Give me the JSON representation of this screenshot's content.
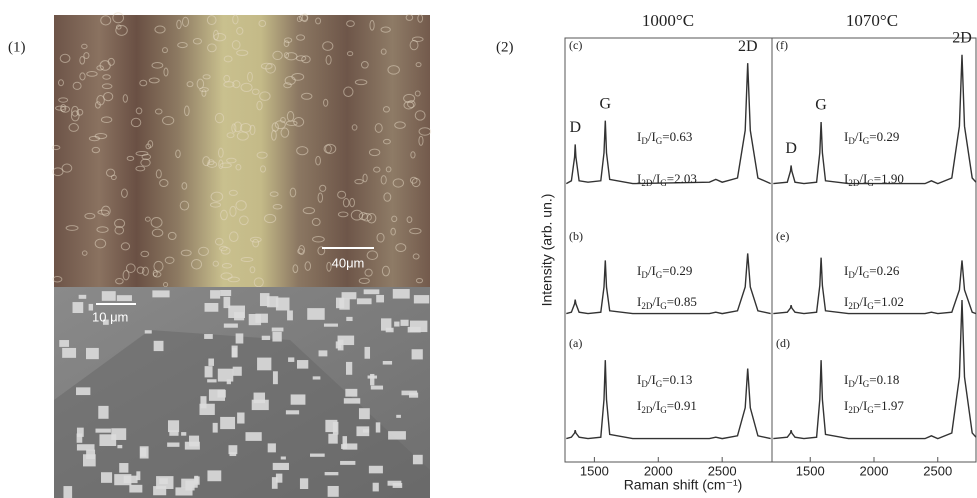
{
  "figure": {
    "panel1_label": "(1)",
    "scale_bar_top": "40μm",
    "scale_bar_bottom": "10 μm",
    "panel2_label": "(2)"
  },
  "chart_data": [
    {
      "type": "line",
      "title": "1000°C",
      "y_label": "Intensity (arb. un.)",
      "x_label": "Raman shift (cm⁻¹)",
      "xlim": [
        1270,
        2890
      ],
      "xticks": [
        1500,
        2000,
        2500
      ],
      "ylim": [
        0,
        100
      ],
      "x": [
        1280,
        1320,
        1345,
        1350,
        1355,
        1380,
        1450,
        1550,
        1575,
        1585,
        1595,
        1620,
        1800,
        2400,
        2450,
        2500,
        2620,
        2680,
        2700,
        2720,
        2780,
        2880
      ],
      "series": [
        {
          "name": "(c)",
          "color": "#333333",
          "values": [
            1,
            3,
            20,
            29,
            20,
            3,
            2,
            3,
            23,
            46,
            23,
            4,
            1,
            2,
            4,
            2,
            5,
            39,
            87,
            39,
            5,
            1
          ],
          "annotations": [
            {
              "text": "D",
              "x": 1350
            },
            {
              "text": "G",
              "x": 1585
            },
            {
              "text": "2D",
              "x": 2700
            }
          ],
          "ratios": [
            [
              "I",
              "D",
              "/I",
              "G",
              "=0.63"
            ],
            [
              "I",
              "2D",
              "/I",
              "G",
              "=2.03"
            ]
          ]
        },
        {
          "name": "(b)",
          "color": "#333333",
          "values": [
            1,
            2,
            8,
            11,
            8,
            2,
            1,
            2,
            20,
            39,
            20,
            3,
            1,
            1,
            2,
            1,
            3,
            20,
            44,
            20,
            3,
            1
          ],
          "ratios": [
            [
              "I",
              "D",
              "/I",
              "G",
              "=0.29"
            ],
            [
              "I",
              "2D",
              "/I",
              "G",
              "=0.85"
            ]
          ]
        },
        {
          "name": "(a)",
          "color": "#333333",
          "values": [
            1,
            2,
            5,
            7,
            5,
            2,
            1,
            2,
            29,
            57,
            29,
            4,
            1,
            1,
            2,
            1,
            3,
            23,
            51,
            23,
            3,
            1
          ],
          "ratios": [
            [
              "I",
              "D",
              "/I",
              "G",
              "=0.13"
            ],
            [
              "I",
              "2D",
              "/I",
              "G",
              "=0.91"
            ]
          ]
        }
      ]
    },
    {
      "type": "line",
      "title": "1070°C",
      "xlim": [
        1200,
        2800
      ],
      "xticks": [
        1500,
        2000,
        2500
      ],
      "ylim": [
        0,
        100
      ],
      "x": [
        1210,
        1320,
        1345,
        1350,
        1355,
        1380,
        1450,
        1550,
        1575,
        1585,
        1595,
        1620,
        1800,
        2400,
        2450,
        2500,
        2610,
        2670,
        2690,
        2710,
        2770,
        2800
      ],
      "series": [
        {
          "name": "(f)",
          "color": "#333333",
          "values": [
            1,
            2,
            10,
            14,
            10,
            2,
            1,
            2,
            23,
            45,
            23,
            3,
            1,
            1,
            3,
            1,
            5,
            42,
            93,
            42,
            5,
            2
          ],
          "annotations": [
            {
              "text": "D",
              "x": 1350
            },
            {
              "text": "G",
              "x": 1585
            },
            {
              "text": "2D",
              "x": 2690
            }
          ],
          "ratios": [
            [
              "I",
              "D",
              "/I",
              "G",
              "=0.29"
            ],
            [
              "I",
              "2D",
              "/I",
              "G",
              "=1.90"
            ]
          ]
        },
        {
          "name": "(e)",
          "color": "#333333",
          "values": [
            1,
            2,
            5,
            7,
            5,
            2,
            1,
            2,
            21,
            41,
            21,
            3,
            1,
            1,
            2,
            1,
            2,
            18,
            39,
            18,
            2,
            1
          ],
          "ratios": [
            [
              "I",
              "D",
              "/I",
              "G",
              "=0.26"
            ],
            [
              "I",
              "2D",
              "/I",
              "G",
              "=1.02"
            ]
          ]
        },
        {
          "name": "(d)",
          "color": "#333333",
          "values": [
            1,
            2,
            5,
            7,
            5,
            2,
            1,
            2,
            29,
            57,
            29,
            4,
            1,
            1,
            3,
            1,
            5,
            45,
            100,
            45,
            5,
            2
          ],
          "ratios": [
            [
              "I",
              "D",
              "/I",
              "G",
              "=0.18"
            ],
            [
              "I",
              "2D",
              "/I",
              "G",
              "=1.97"
            ]
          ]
        }
      ]
    }
  ]
}
